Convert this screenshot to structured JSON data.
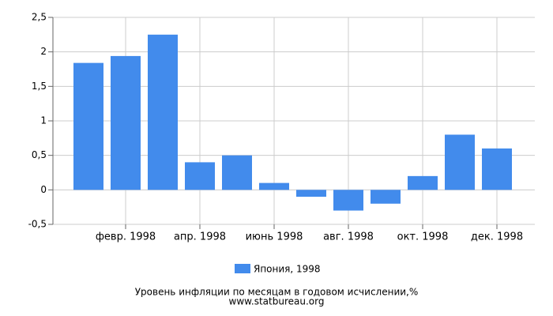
{
  "chart_data": {
    "type": "bar",
    "title": "Уровень инфляции по месяцам в годовом исчислении,%",
    "source": "www.statbureau.org",
    "categories": [
      null,
      "февр. 1998",
      null,
      "апр. 1998",
      null,
      "июнь 1998",
      null,
      "авг. 1998",
      null,
      "окт. 1998",
      null,
      "дек. 1998"
    ],
    "series": [
      {
        "name": "Япония, 1998",
        "color": "#428bec",
        "values": [
          1.84,
          1.94,
          2.25,
          0.4,
          0.5,
          0.1,
          -0.1,
          -0.3,
          -0.2,
          0.2,
          0.8,
          0.6
        ]
      }
    ],
    "ylim": [
      -0.5,
      2.5
    ],
    "yticks": [
      {
        "value": -0.5,
        "label": "-0,5"
      },
      0,
      {
        "value": 0.5,
        "label": "0,5"
      },
      1,
      {
        "value": 1.5,
        "label": "1,5"
      },
      2,
      {
        "value": 2.5,
        "label": "2,5"
      }
    ],
    "grid": true
  }
}
